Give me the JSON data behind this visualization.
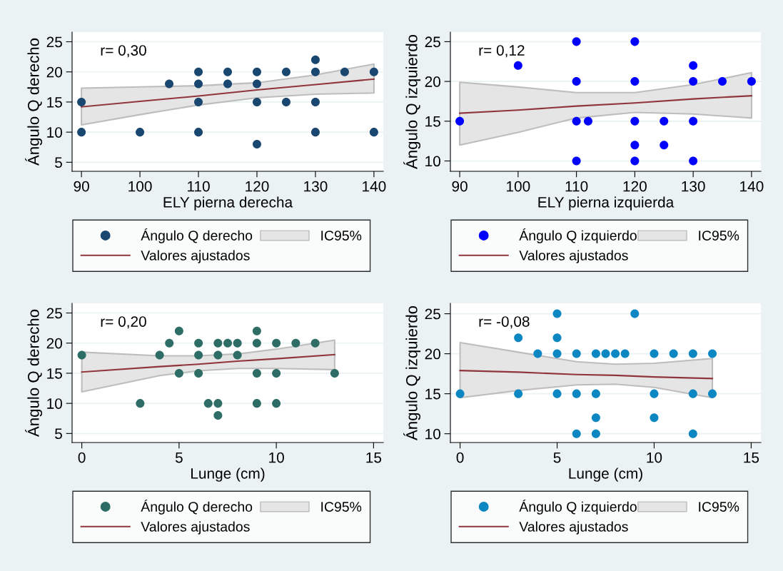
{
  "chart_data": [
    {
      "type": "scatter",
      "xlabel": "ELY pierna derecha",
      "ylabel": "Ángulo Q derecho",
      "xlim": [
        88.4,
        141.6
      ],
      "xticks": [
        90,
        100,
        110,
        120,
        130,
        140
      ],
      "ylim": [
        3.5,
        26.6
      ],
      "yticks": [
        5,
        10,
        15,
        20,
        25
      ],
      "grid": "y",
      "legend": "bottom",
      "annotations": [
        "r= 0,30"
      ],
      "series": [
        {
          "name": "Ángulo Q derecho",
          "marker": "circle",
          "color": "#1a476f",
          "x": [
            90,
            90,
            100,
            105,
            110,
            110,
            110,
            110,
            115,
            115,
            120,
            120,
            120,
            120,
            125,
            125,
            130,
            130,
            130,
            130,
            135,
            140,
            140
          ],
          "values": [
            15,
            10,
            10,
            18,
            20,
            18,
            15,
            10,
            20,
            18,
            20,
            18,
            15,
            8,
            20,
            15,
            22,
            20,
            15,
            10,
            20,
            20,
            10
          ]
        },
        {
          "name": "IC95%",
          "type": "area",
          "color": "#e5e5e5"
        },
        {
          "name": "Valores ajustados",
          "type": "line",
          "color": "#90353b",
          "x": [
            90,
            100,
            110,
            120,
            130,
            140
          ],
          "values": [
            14.2,
            15.1,
            16.0,
            17.0,
            17.9,
            18.8
          ],
          "lower": [
            11.2,
            12.9,
            14.5,
            15.7,
            16.3,
            16.5
          ],
          "upper": [
            17.3,
            17.5,
            17.7,
            18.2,
            19.5,
            21.3
          ]
        }
      ]
    },
    {
      "type": "scatter",
      "xlabel": "ELY pierna izquierda",
      "ylabel": "Ángulo Q izquierdo",
      "xlim": [
        88.4,
        141.6
      ],
      "xticks": [
        90,
        100,
        110,
        120,
        130,
        140
      ],
      "ylim": [
        8.7,
        26.2
      ],
      "yticks": [
        10,
        15,
        20,
        25
      ],
      "grid": "y",
      "legend": "bottom",
      "annotations": [
        "r= 0,12"
      ],
      "series": [
        {
          "name": "Ángulo Q izquierdo",
          "marker": "circle",
          "color": "#0000ff",
          "x": [
            90,
            100,
            110,
            110,
            110,
            110,
            112,
            120,
            120,
            120,
            120,
            120,
            125,
            125,
            130,
            130,
            130,
            130,
            135,
            140
          ],
          "values": [
            15,
            22,
            25,
            20,
            15,
            10,
            15,
            25,
            20,
            15,
            12,
            10,
            15,
            12,
            22,
            20,
            15,
            10,
            20,
            20
          ]
        },
        {
          "name": "IC95%",
          "type": "area",
          "color": "#e5e5e5"
        },
        {
          "name": "Valores ajustados",
          "type": "line",
          "color": "#90353b",
          "x": [
            90,
            100,
            110,
            120,
            130,
            140
          ],
          "values": [
            16.0,
            16.4,
            16.9,
            17.3,
            17.8,
            18.2
          ],
          "lower": [
            12.0,
            13.6,
            15.4,
            16.1,
            15.9,
            15.4
          ],
          "upper": [
            19.9,
            19.3,
            18.6,
            18.6,
            19.6,
            21.1
          ]
        }
      ]
    },
    {
      "type": "scatter",
      "xlabel": "Lunge (cm)",
      "ylabel": "Ángulo Q derecho",
      "xlim": [
        -0.5,
        15.5
      ],
      "xticks": [
        0,
        5,
        10,
        15
      ],
      "ylim": [
        3.5,
        26.6
      ],
      "yticks": [
        5,
        10,
        15,
        20,
        25
      ],
      "grid": "y",
      "legend": "bottom",
      "annotations": [
        "r= 0,20"
      ],
      "series": [
        {
          "name": "Ángulo Q derecho",
          "marker": "circle",
          "color": "#2d6d66",
          "x": [
            0,
            3,
            4,
            4.5,
            5,
            5,
            6,
            6,
            6,
            6.5,
            7,
            7,
            7,
            7,
            7.5,
            8,
            8,
            9,
            9,
            9,
            9,
            10,
            10,
            10,
            11,
            12,
            13
          ],
          "values": [
            18,
            10,
            18,
            20,
            22,
            15,
            20,
            18,
            15,
            10,
            20,
            18,
            10,
            8,
            20,
            20,
            18,
            22,
            20,
            15,
            10,
            20,
            15,
            10,
            20,
            20,
            15
          ]
        },
        {
          "name": "IC95%",
          "type": "area",
          "color": "#e5e5e5"
        },
        {
          "name": "Valores ajustados",
          "type": "line",
          "color": "#90353b",
          "x": [
            0,
            4,
            6,
            8,
            10,
            13
          ],
          "values": [
            15.2,
            16.1,
            16.5,
            17.0,
            17.4,
            18.1
          ],
          "lower": [
            11.9,
            14.6,
            15.4,
            15.8,
            15.8,
            15.6
          ],
          "upper": [
            18.5,
            17.9,
            17.9,
            18.2,
            19.0,
            20.5
          ]
        }
      ]
    },
    {
      "type": "scatter",
      "xlabel": "Lunge (cm)",
      "ylabel": "Ángulo Q izquierdo",
      "xlim": [
        -0.5,
        15.5
      ],
      "xticks": [
        0,
        5,
        10,
        15
      ],
      "ylim": [
        8.9,
        26.3
      ],
      "yticks": [
        10,
        15,
        20,
        25
      ],
      "grid": "y",
      "legend": "bottom",
      "annotations": [
        "r= -0,08"
      ],
      "series": [
        {
          "name": "Ángulo Q izquierdo",
          "marker": "circle",
          "color": "#0c87c1",
          "x": [
            0,
            3,
            3,
            4,
            5,
            5,
            5,
            5,
            6,
            6,
            6,
            7,
            7,
            7,
            7,
            7.5,
            8,
            8.5,
            9,
            10,
            10,
            10,
            11,
            12,
            12,
            12,
            13,
            13
          ],
          "values": [
            15,
            22,
            15,
            20,
            25,
            22,
            20,
            15,
            20,
            15,
            10,
            20,
            15,
            12,
            10,
            20,
            20,
            20,
            25,
            20,
            15,
            12,
            20,
            20,
            15,
            10,
            20,
            15
          ]
        },
        {
          "name": "IC95%",
          "type": "area",
          "color": "#e5e5e5"
        },
        {
          "name": "Valores ajustados",
          "type": "line",
          "color": "#90353b",
          "x": [
            0,
            3,
            6,
            8,
            10,
            13
          ],
          "values": [
            17.9,
            17.7,
            17.4,
            17.3,
            17.1,
            16.9
          ],
          "lower": [
            14.5,
            15.4,
            16.1,
            16.2,
            15.8,
            14.5
          ],
          "upper": [
            21.4,
            20.2,
            19.0,
            18.7,
            18.8,
            19.4
          ]
        }
      ]
    }
  ]
}
